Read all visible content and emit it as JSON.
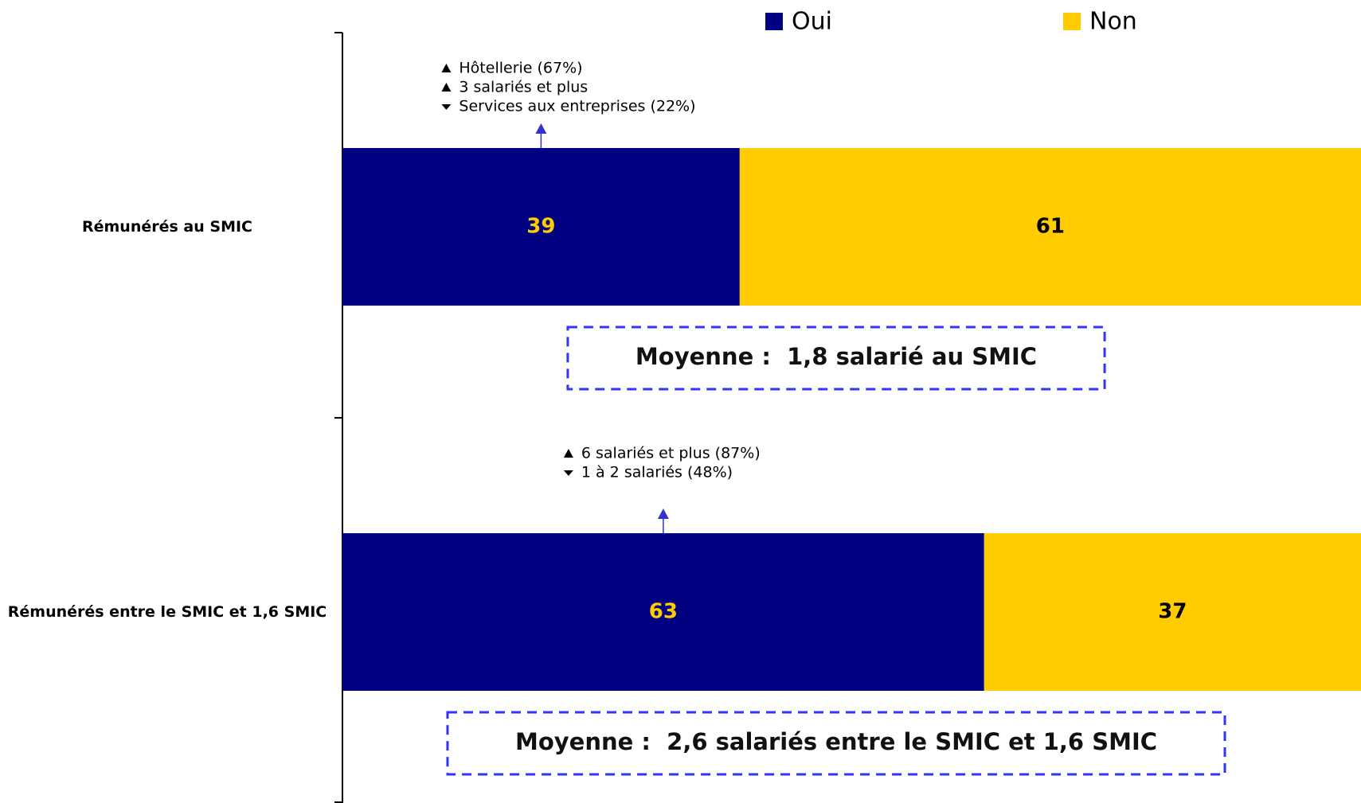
{
  "chart_data": {
    "type": "stacked_bar",
    "orientation": "horizontal",
    "categories": [
      "Rémunérés au SMIC",
      "Rémunérés entre le SMIC et 1,6 SMIC"
    ],
    "series": [
      {
        "name": "Oui",
        "color": "#000080",
        "label_color": "#FFCC00",
        "values": [
          39,
          63
        ]
      },
      {
        "name": "Non",
        "color": "#FFCC00",
        "label_color": "#000000",
        "values": [
          61,
          37
        ]
      }
    ],
    "xlim": [
      0,
      100
    ],
    "legend": "top",
    "notes": [
      [
        {
          "text": "Hôtellerie (67%)",
          "direction": "up"
        },
        {
          "text": "3 salariés et plus",
          "direction": "up"
        },
        {
          "text": "Services aux entreprises (22%)",
          "direction": "down"
        }
      ],
      [
        {
          "text": "6 salariés et plus (87%)",
          "direction": "up"
        },
        {
          "text": "1 à 2 salariés (48%)",
          "direction": "down"
        }
      ]
    ],
    "averages": [
      "Moyenne :  1,8 salarié au SMIC",
      "Moyenne :  2,6 salariés entre le SMIC et 1,6 SMIC"
    ]
  }
}
